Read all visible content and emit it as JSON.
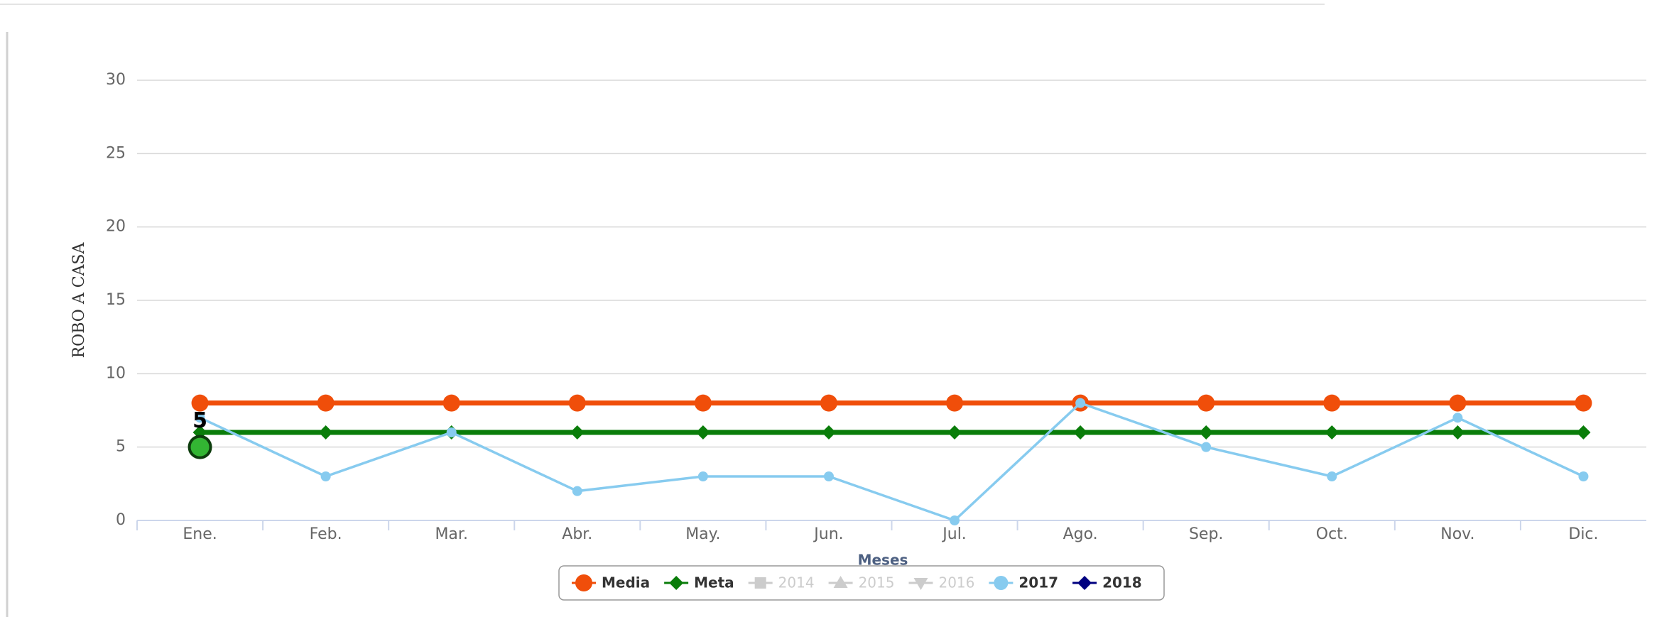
{
  "chart_data": {
    "type": "line",
    "y_axis_label": "ROBO A CASA",
    "x_axis_label": "Meses",
    "categories": [
      "Ene.",
      "Feb.",
      "Mar.",
      "Abr.",
      "May.",
      "Jun.",
      "Jul.",
      "Ago.",
      "Sep.",
      "Oct.",
      "Nov.",
      "Dic."
    ],
    "ylim": [
      0,
      30
    ],
    "yticks": [
      0,
      5,
      10,
      15,
      20,
      25,
      30
    ],
    "grid": true,
    "series": [
      {
        "name": "Media",
        "color": "#f04e0a",
        "marker": "circle",
        "values": [
          8,
          8,
          8,
          8,
          8,
          8,
          8,
          8,
          8,
          8,
          8,
          8
        ]
      },
      {
        "name": "Meta",
        "color": "#0a7d0a",
        "marker": "diamond",
        "values": [
          6,
          6,
          6,
          6,
          6,
          6,
          6,
          6,
          6,
          6,
          6,
          6
        ]
      },
      {
        "name": "2014",
        "color": "#cccccc",
        "marker": "square",
        "hidden": true,
        "values": [
          null,
          null,
          null,
          null,
          null,
          null,
          null,
          null,
          null,
          null,
          null,
          null
        ]
      },
      {
        "name": "2015",
        "color": "#cccccc",
        "marker": "triangle",
        "hidden": true,
        "values": [
          null,
          null,
          null,
          null,
          null,
          null,
          null,
          null,
          null,
          null,
          null,
          null
        ]
      },
      {
        "name": "2016",
        "color": "#cccccc",
        "marker": "triangle-down",
        "hidden": true,
        "values": [
          null,
          null,
          null,
          null,
          null,
          null,
          null,
          null,
          null,
          null,
          null,
          null
        ]
      },
      {
        "name": "2017",
        "color": "#87cbef",
        "marker": "circle",
        "values": [
          7,
          3,
          6,
          2,
          3,
          3,
          0,
          8,
          5,
          3,
          7,
          3
        ]
      },
      {
        "name": "2018",
        "color": "#000080",
        "marker": "diamond",
        "data_labels": true,
        "values": [
          5,
          null,
          null,
          null,
          null,
          null,
          null,
          null,
          null,
          null,
          null,
          null
        ]
      }
    ],
    "legend": "bottom"
  }
}
